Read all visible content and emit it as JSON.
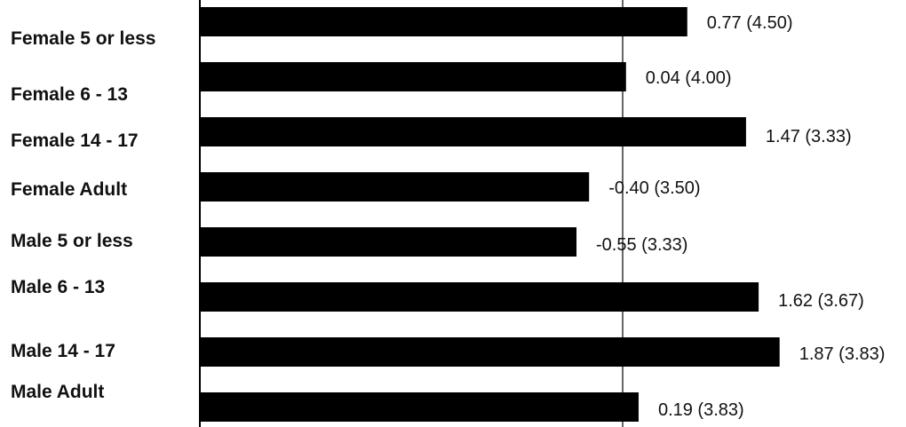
{
  "chart_data": {
    "type": "bar",
    "orientation": "horizontal",
    "title": "",
    "xlabel": "",
    "ylabel": "",
    "categories": [
      "Female 5 or less",
      "Female 6 - 13",
      "Female 14 - 17",
      "Female Adult",
      "Male 5 or less",
      "Male 6 - 13",
      "Male 14 - 17",
      "Male Adult"
    ],
    "values": [
      0.77,
      0.04,
      1.47,
      -0.4,
      -0.55,
      1.62,
      1.87,
      0.19
    ],
    "secondary_values": [
      4.5,
      4.0,
      3.33,
      3.5,
      3.33,
      3.67,
      3.83,
      3.83
    ],
    "data_labels": [
      "0.77 (4.50)",
      "0.04 (4.00)",
      "1.47 (3.33)",
      "-0.40 (3.50)",
      "-0.55 (3.33)",
      "1.62 (3.67)",
      "1.87 (3.83)",
      "0.19 (3.83)"
    ],
    "xlim": [
      -2.0,
      2.0
    ],
    "grid": false,
    "legend": "none",
    "bar_color": "#000000",
    "axis_color": "#000000"
  }
}
